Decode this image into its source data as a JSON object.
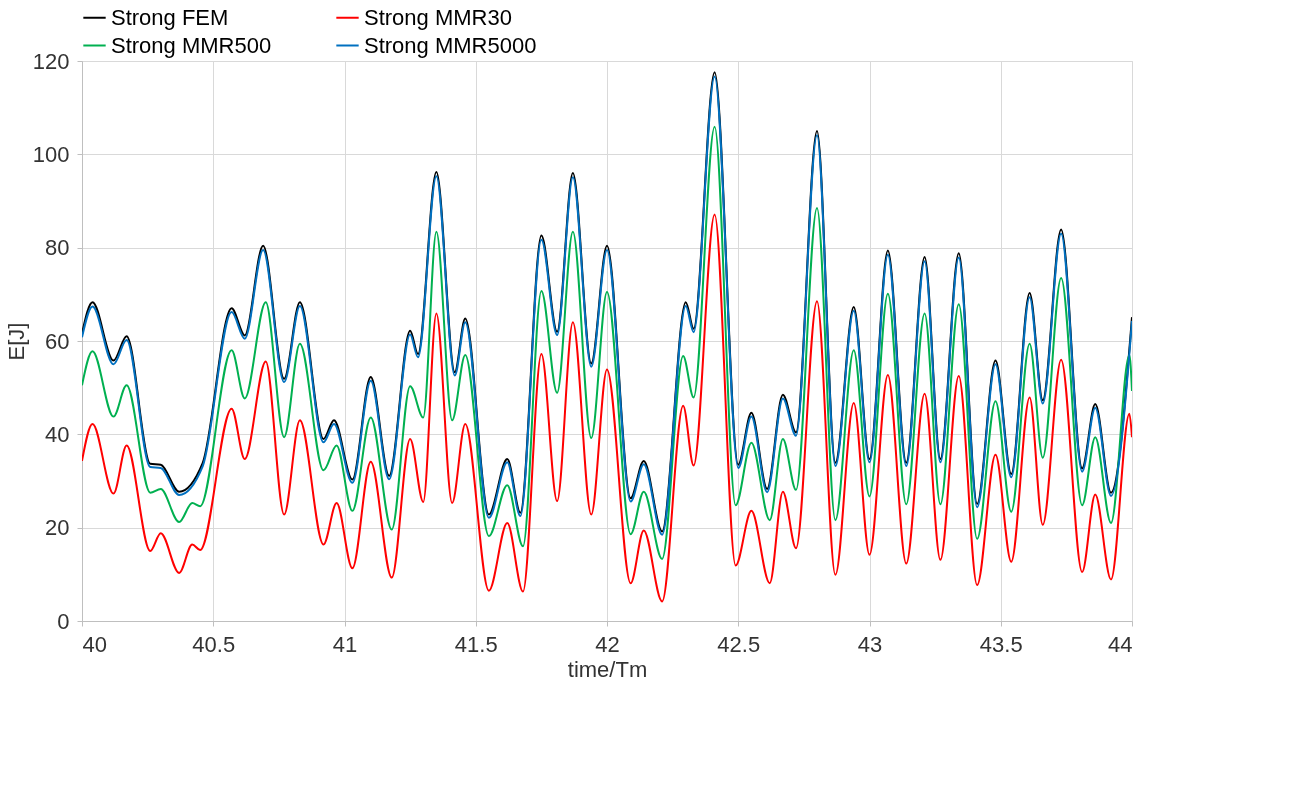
{
  "chart_data": {
    "type": "line",
    "xlabel": "time/Tm",
    "ylabel": "E[J]",
    "xlim": [
      40,
      44
    ],
    "xticks": [
      40,
      40.5,
      41,
      41.5,
      42,
      42.5,
      43,
      43.5,
      44
    ],
    "ylim": [
      0,
      120
    ],
    "yticks": [
      0,
      20,
      40,
      60,
      80,
      100,
      120
    ],
    "grid": true,
    "legend": "top",
    "line_style": "solid",
    "series": [
      {
        "name": "Strong FEM",
        "color": "#000000",
        "x": [
          40.0,
          40.04,
          40.12,
          40.17,
          40.26,
          40.3,
          40.37,
          40.46,
          40.57,
          40.62,
          40.69,
          40.77,
          40.83,
          40.92,
          40.96,
          41.03,
          41.1,
          41.17,
          41.25,
          41.28,
          41.35,
          41.42,
          41.46,
          41.55,
          41.62,
          41.67,
          41.75,
          41.81,
          41.87,
          41.94,
          42.0,
          42.09,
          42.14,
          42.21,
          42.3,
          42.33,
          42.41,
          42.5,
          42.55,
          42.61,
          42.67,
          42.72,
          42.8,
          42.87,
          42.94,
          43.0,
          43.07,
          43.14,
          43.21,
          43.27,
          43.34,
          43.41,
          43.48,
          43.54,
          43.61,
          43.66,
          43.73,
          43.81,
          43.86,
          43.92,
          44.0
        ],
        "values": [
          61.6,
          68.3,
          55.8,
          61,
          33.7,
          33.5,
          27.7,
          33.9,
          67,
          61.2,
          80.4,
          51.9,
          68.3,
          39,
          43,
          30.3,
          52.3,
          31.1,
          62.2,
          57.2,
          96.2,
          53.3,
          64.8,
          22.8,
          34.7,
          23.2,
          82.6,
          62,
          96,
          55.2,
          80.4,
          26.3,
          34.3,
          19.2,
          68.3,
          62.6,
          117.6,
          33.5,
          44.6,
          28.3,
          48.5,
          40.4,
          105,
          33.9,
          67.3,
          34.7,
          79.4,
          33.9,
          78,
          34.7,
          78.8,
          25.1,
          55.8,
          31.5,
          70.3,
          47.3,
          83.9,
          32.7,
          46.5,
          27.5,
          65.1
        ]
      },
      {
        "name": "Strong MMR30",
        "color": "#ff0000",
        "x": [
          40.0,
          40.04,
          40.12,
          40.17,
          40.26,
          40.3,
          40.37,
          40.42,
          40.45,
          40.57,
          40.62,
          40.7,
          40.77,
          40.83,
          40.92,
          40.97,
          41.03,
          41.1,
          41.18,
          41.25,
          41.3,
          41.35,
          41.41,
          41.46,
          41.55,
          41.62,
          41.68,
          41.75,
          41.81,
          41.87,
          41.94,
          42.0,
          42.09,
          42.14,
          42.21,
          42.29,
          42.33,
          42.41,
          42.49,
          42.55,
          42.62,
          42.67,
          42.72,
          42.8,
          42.87,
          42.94,
          43.0,
          43.07,
          43.14,
          43.21,
          43.27,
          43.34,
          43.41,
          43.48,
          43.54,
          43.61,
          43.66,
          43.73,
          43.81,
          43.86,
          43.92,
          43.99,
          44.0
        ],
        "values": [
          34.3,
          42.2,
          27.3,
          37.6,
          15,
          18.8,
          10.3,
          16.4,
          15.2,
          45.5,
          34.7,
          55.6,
          22.8,
          43,
          16.4,
          25.3,
          11.3,
          34.1,
          9.3,
          39,
          25.5,
          65.9,
          25.3,
          42.2,
          6.5,
          21,
          6.3,
          57.2,
          25.7,
          64,
          22.8,
          53.9,
          8.1,
          19.4,
          4.2,
          46.1,
          33.3,
          87.1,
          11.9,
          23.6,
          8.1,
          27.7,
          15.6,
          68.5,
          9.9,
          46.7,
          14.2,
          52.7,
          12.3,
          48.7,
          13.1,
          52.5,
          7.7,
          35.6,
          12.7,
          47.9,
          20.6,
          56,
          10.5,
          27.1,
          8.9,
          44.4,
          39.4
        ]
      },
      {
        "name": "Strong MMR500",
        "color": "#00b050",
        "x": [
          40.0,
          40.04,
          40.12,
          40.17,
          40.26,
          40.3,
          40.37,
          40.42,
          40.45,
          40.57,
          40.62,
          40.7,
          40.77,
          40.83,
          40.92,
          40.97,
          41.03,
          41.1,
          41.18,
          41.25,
          41.3,
          41.35,
          41.41,
          41.46,
          41.55,
          41.62,
          41.68,
          41.75,
          41.81,
          41.87,
          41.94,
          42.0,
          42.09,
          42.14,
          42.21,
          42.29,
          42.33,
          42.41,
          42.49,
          42.55,
          42.62,
          42.67,
          42.72,
          42.8,
          42.87,
          42.94,
          43.0,
          43.07,
          43.14,
          43.21,
          43.27,
          43.34,
          43.41,
          43.48,
          43.54,
          43.61,
          43.66,
          43.73,
          43.81,
          43.86,
          43.92,
          43.99,
          44.0
        ],
        "values": [
          50.5,
          57.8,
          43.8,
          50.5,
          27.5,
          28.3,
          21.2,
          25.3,
          24.6,
          58,
          47.7,
          68.3,
          39.4,
          59.4,
          32.3,
          37.6,
          23.6,
          43.6,
          19.6,
          50.3,
          43.6,
          83.4,
          43,
          57,
          18.2,
          29.1,
          16,
          70.7,
          48.9,
          83.4,
          39.2,
          70.5,
          18.6,
          27.7,
          13.3,
          56.8,
          47.9,
          105.9,
          24.8,
          38.2,
          21.6,
          39,
          28.1,
          88.5,
          21.6,
          58,
          26.7,
          70.1,
          25,
          65.9,
          25,
          67.9,
          17.6,
          47.1,
          23.4,
          59.4,
          35,
          73.5,
          24.8,
          39.4,
          21,
          57,
          49.3
        ]
      },
      {
        "name": "Strong MMR5000",
        "color": "#0070c0",
        "x": [
          40.0,
          40.04,
          40.12,
          40.17,
          40.26,
          40.3,
          40.37,
          40.46,
          40.57,
          40.62,
          40.69,
          40.77,
          40.83,
          40.92,
          40.96,
          41.03,
          41.1,
          41.17,
          41.25,
          41.28,
          41.35,
          41.42,
          41.46,
          41.55,
          41.62,
          41.67,
          41.75,
          41.81,
          41.87,
          41.94,
          42.0,
          42.09,
          42.14,
          42.21,
          42.3,
          42.33,
          42.41,
          42.5,
          42.55,
          42.61,
          42.67,
          42.72,
          42.8,
          42.87,
          42.94,
          43.0,
          43.07,
          43.14,
          43.21,
          43.27,
          43.34,
          43.41,
          43.48,
          43.54,
          43.61,
          43.66,
          43.73,
          43.81,
          43.86,
          43.92,
          44.0
        ],
        "values": [
          60.8,
          67.4,
          55,
          60.2,
          33,
          32.8,
          27,
          33.2,
          66.2,
          60.5,
          79.5,
          51.2,
          67.5,
          38.3,
          42.2,
          29.6,
          51.5,
          30.4,
          61.4,
          56.5,
          95.3,
          52.6,
          64,
          22.1,
          34,
          22.5,
          81.7,
          61.3,
          95.1,
          54.5,
          79.5,
          25.6,
          33.6,
          18.5,
          67.5,
          61.9,
          116.7,
          32.8,
          43.8,
          27.6,
          47.7,
          39.7,
          104.1,
          33.2,
          66.5,
          34,
          78.5,
          33.2,
          77.1,
          34,
          77.9,
          24.4,
          55,
          30.8,
          69.4,
          46.6,
          83,
          32,
          45.7,
          26.8,
          64.3
        ]
      }
    ]
  }
}
